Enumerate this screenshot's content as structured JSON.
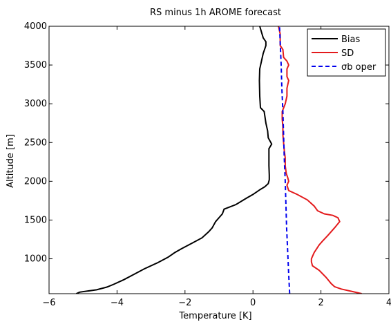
{
  "chart_data": {
    "type": "line",
    "title": "RS minus 1h AROME forecast",
    "xlabel": "Temperature [K]",
    "ylabel": "Altitude [m]",
    "xlim": [
      -6,
      4
    ],
    "ylim": [
      550,
      4000
    ],
    "xticks": [
      -6,
      -4,
      -2,
      0,
      2,
      4
    ],
    "yticks": [
      1000,
      1500,
      2000,
      2500,
      3000,
      3500,
      4000
    ],
    "grid": false,
    "legend_position": "top-right",
    "series": [
      {
        "name": "Bias",
        "color": "#000000",
        "dash": "solid",
        "points": [
          [
            -5.2,
            550
          ],
          [
            -5.1,
            570
          ],
          [
            -4.6,
            600
          ],
          [
            -4.3,
            635
          ],
          [
            -4.1,
            670
          ],
          [
            -3.8,
            730
          ],
          [
            -3.5,
            800
          ],
          [
            -3.2,
            870
          ],
          [
            -2.8,
            950
          ],
          [
            -2.5,
            1020
          ],
          [
            -2.3,
            1080
          ],
          [
            -2.1,
            1130
          ],
          [
            -1.8,
            1200
          ],
          [
            -1.5,
            1270
          ],
          [
            -1.3,
            1350
          ],
          [
            -1.2,
            1400
          ],
          [
            -1.1,
            1480
          ],
          [
            -1.0,
            1530
          ],
          [
            -0.9,
            1580
          ],
          [
            -0.85,
            1640
          ],
          [
            -0.5,
            1700
          ],
          [
            -0.2,
            1780
          ],
          [
            0.0,
            1830
          ],
          [
            0.2,
            1890
          ],
          [
            0.35,
            1930
          ],
          [
            0.45,
            1970
          ],
          [
            0.48,
            2020
          ],
          [
            0.48,
            2080
          ],
          [
            0.47,
            2200
          ],
          [
            0.47,
            2350
          ],
          [
            0.47,
            2420
          ],
          [
            0.55,
            2480
          ],
          [
            0.45,
            2560
          ],
          [
            0.43,
            2650
          ],
          [
            0.38,
            2750
          ],
          [
            0.33,
            2900
          ],
          [
            0.22,
            2950
          ],
          [
            0.2,
            3100
          ],
          [
            0.19,
            3300
          ],
          [
            0.2,
            3450
          ],
          [
            0.25,
            3550
          ],
          [
            0.3,
            3650
          ],
          [
            0.38,
            3750
          ],
          [
            0.38,
            3800
          ],
          [
            0.3,
            3850
          ],
          [
            0.2,
            4000
          ]
        ]
      },
      {
        "name": "SD",
        "color": "#e31a1c",
        "dash": "solid",
        "points": [
          [
            3.2,
            550
          ],
          [
            2.9,
            580
          ],
          [
            2.6,
            610
          ],
          [
            2.4,
            640
          ],
          [
            2.3,
            680
          ],
          [
            2.15,
            760
          ],
          [
            1.95,
            850
          ],
          [
            1.75,
            910
          ],
          [
            1.72,
            960
          ],
          [
            1.72,
            1000
          ],
          [
            1.8,
            1080
          ],
          [
            1.95,
            1180
          ],
          [
            2.05,
            1230
          ],
          [
            2.2,
            1300
          ],
          [
            2.4,
            1400
          ],
          [
            2.55,
            1480
          ],
          [
            2.5,
            1530
          ],
          [
            2.35,
            1560
          ],
          [
            2.1,
            1580
          ],
          [
            1.9,
            1620
          ],
          [
            1.8,
            1680
          ],
          [
            1.6,
            1760
          ],
          [
            1.3,
            1830
          ],
          [
            1.05,
            1880
          ],
          [
            1.0,
            1950
          ],
          [
            1.05,
            2000
          ],
          [
            1.02,
            2050
          ],
          [
            0.98,
            2100
          ],
          [
            0.95,
            2200
          ],
          [
            0.95,
            2300
          ],
          [
            0.92,
            2400
          ],
          [
            0.9,
            2500
          ],
          [
            0.88,
            2600
          ],
          [
            0.88,
            2700
          ],
          [
            0.86,
            2800
          ],
          [
            0.86,
            2900
          ],
          [
            0.95,
            3000
          ],
          [
            1.0,
            3100
          ],
          [
            1.0,
            3200
          ],
          [
            1.05,
            3300
          ],
          [
            1.0,
            3350
          ],
          [
            1.0,
            3450
          ],
          [
            1.05,
            3500
          ],
          [
            1.0,
            3550
          ],
          [
            0.9,
            3600
          ],
          [
            0.88,
            3700
          ],
          [
            0.8,
            3750
          ],
          [
            0.8,
            3800
          ],
          [
            0.8,
            3900
          ],
          [
            0.75,
            4000
          ]
        ]
      },
      {
        "name": "σb oper",
        "color": "#0000ee",
        "dash": "dashed",
        "points": [
          [
            1.08,
            550
          ],
          [
            1.05,
            800
          ],
          [
            1.02,
            1100
          ],
          [
            0.99,
            1400
          ],
          [
            0.97,
            1700
          ],
          [
            0.95,
            2000
          ],
          [
            0.92,
            2300
          ],
          [
            0.9,
            2600
          ],
          [
            0.88,
            2900
          ],
          [
            0.85,
            3200
          ],
          [
            0.83,
            3500
          ],
          [
            0.8,
            3800
          ],
          [
            0.78,
            4000
          ]
        ]
      }
    ]
  }
}
